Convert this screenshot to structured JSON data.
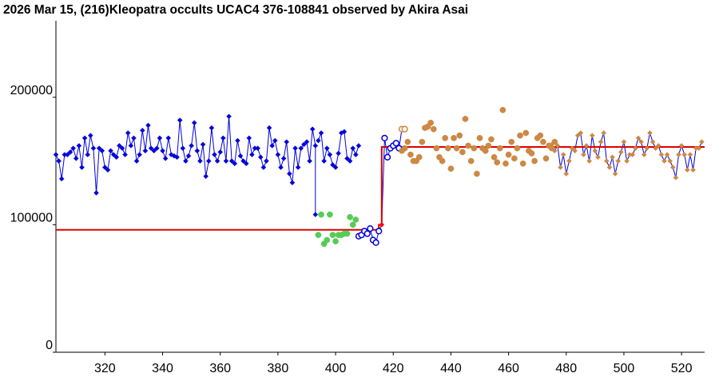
{
  "chart_data": {
    "type": "scatter",
    "title": "2026 Mar 15, (216)Kleopatra occults UCAC4 376-108841 observed by Akira Asai",
    "xlabel": "",
    "ylabel": "",
    "xlim": [
      303,
      528
    ],
    "ylim": [
      0,
      260000
    ],
    "x_ticks": [
      320,
      340,
      360,
      380,
      400,
      420,
      440,
      460,
      480,
      500,
      520
    ],
    "y_ticks": [
      0,
      100000,
      200000
    ],
    "grid": false,
    "colors": {
      "before": "#0000dd",
      "during": "#55cc55",
      "during_open": "#0000dd",
      "after": "#cc8844",
      "model": "#dd0000",
      "disappear": "#ff0000"
    },
    "series": [
      {
        "role": "before",
        "marker": "diamond-filled",
        "x": [
          303,
          304,
          305,
          306,
          307,
          308,
          309,
          310,
          311,
          312,
          313,
          314,
          315,
          316,
          317,
          318,
          319,
          320,
          321,
          322,
          323,
          324,
          325,
          326,
          327,
          328,
          329,
          330,
          331,
          332,
          333,
          334,
          335,
          336,
          337,
          338,
          339,
          340,
          341,
          342,
          343,
          344,
          345,
          346,
          347,
          348,
          349,
          350,
          351,
          352,
          353,
          354,
          355,
          356,
          357,
          358,
          359,
          360,
          361,
          362,
          363,
          364,
          365,
          366,
          367,
          368,
          369,
          370,
          371,
          372,
          373,
          374,
          375,
          376,
          377,
          378,
          379,
          380,
          381,
          382,
          383,
          384,
          385,
          386,
          387,
          388,
          389,
          390,
          391,
          392,
          393
        ],
        "y": [
          155000,
          150000,
          136000,
          155000,
          155000,
          157000,
          160000,
          152000,
          162000,
          145000,
          168000,
          155000,
          170000,
          160000,
          125000,
          160000,
          158000,
          145000,
          143000,
          158000,
          155000,
          153000,
          162000,
          160000,
          155000,
          172000,
          162000,
          168000,
          150000,
          155000,
          174000,
          158000,
          178000,
          160000,
          158000,
          160000,
          168000,
          158000,
          152000,
          168000,
          155000,
          154000,
          153000,
          182000,
          160000,
          150000,
          154000,
          162000,
          180000,
          158000,
          150000,
          163000,
          138000,
          150000,
          176000,
          155000,
          150000,
          157000,
          168000,
          150000,
          185000,
          150000,
          148000,
          166000,
          154000,
          150000,
          148000,
          168000,
          155000,
          160000,
          160000,
          153000,
          145000,
          150000,
          176000,
          162000,
          166000,
          155000,
          145000,
          152000,
          165000,
          140000,
          133000,
          160000,
          145000,
          160000,
          163000,
          165000,
          150000,
          175000,
          162000
        ]
      },
      {
        "role": "before",
        "marker": "diamond-filled",
        "x": [
          394,
          395,
          396,
          397,
          398,
          399,
          400,
          401,
          402,
          403,
          404,
          405,
          406,
          407,
          408
        ],
        "y": [
          166000,
          172000,
          150000,
          160000,
          155000,
          147000,
          145000,
          156000,
          172000,
          173000,
          152000,
          150000,
          160000,
          155000,
          162000
        ]
      },
      {
        "role": "drop",
        "marker": "diamond-filled",
        "x": [
          393
        ],
        "y": [
          108000
        ]
      },
      {
        "role": "during",
        "marker": "circle-filled",
        "x": [
          394,
          395,
          396,
          397,
          398,
          399,
          400,
          401,
          402,
          403,
          404,
          405,
          406,
          407
        ],
        "y": [
          92000,
          108000,
          85000,
          88000,
          108000,
          92000,
          87000,
          92000,
          92000,
          93000,
          93000,
          106000,
          100000,
          104000
        ]
      },
      {
        "role": "during_open",
        "marker": "circle-open",
        "x": [
          408,
          409,
          410,
          411,
          412,
          413,
          414,
          415
        ],
        "y": [
          91000,
          92000,
          95000,
          93000,
          97000,
          88000,
          86000,
          95000
        ]
      },
      {
        "role": "disappear",
        "marker": "diamond-filled",
        "x": [
          416
        ],
        "y": [
          100000
        ]
      },
      {
        "role": "reappear_open",
        "marker": "circle-open",
        "x": [
          417,
          418,
          419,
          420,
          421,
          422,
          423,
          424
        ],
        "y": [
          168000,
          153000,
          160000,
          162000,
          164000,
          160000,
          175000,
          175000
        ]
      },
      {
        "role": "after",
        "marker": "circle-filled",
        "x": [
          423,
          424,
          425,
          426,
          427,
          428,
          429,
          430,
          431,
          432,
          433,
          434,
          435,
          436,
          437,
          438,
          439,
          440,
          441,
          442,
          443,
          444,
          445,
          446,
          447,
          448,
          449,
          450,
          451,
          452,
          453,
          454,
          455,
          456,
          457,
          458,
          459,
          460,
          461,
          462,
          463,
          464,
          465,
          466,
          467,
          468,
          469,
          470,
          471,
          472,
          473,
          474,
          475,
          476
        ],
        "y": [
          158000,
          160000,
          165000,
          155000,
          150000,
          150000,
          153000,
          165000,
          176000,
          177000,
          180000,
          175000,
          160000,
          153000,
          150000,
          168000,
          160000,
          144000,
          168000,
          160000,
          170000,
          157000,
          183000,
          162000,
          150000,
          160000,
          140000,
          168000,
          160000,
          158000,
          162000,
          167000,
          153000,
          149000,
          160000,
          190000,
          148000,
          155000,
          165000,
          152000,
          160000,
          170000,
          148000,
          172000,
          158000,
          156000,
          150000,
          168000,
          170000,
          165000,
          152000,
          162000,
          160000,
          165000
        ]
      },
      {
        "role": "after",
        "marker": "diamond-filled",
        "x": [
          475,
          476,
          477,
          478,
          479,
          480,
          481,
          482,
          483,
          484,
          485,
          486,
          487,
          488,
          489,
          490,
          491,
          492,
          493,
          494,
          495,
          496,
          497,
          498,
          499,
          500,
          501,
          502,
          503,
          504,
          505,
          506,
          507,
          508,
          509,
          510,
          511,
          512,
          513,
          514,
          515,
          516,
          517,
          518,
          519,
          520,
          521,
          522,
          523,
          524,
          525,
          526,
          527
        ],
        "y": [
          163000,
          158000,
          162000,
          145000,
          155000,
          140000,
          150000,
          160000,
          158000,
          170000,
          172000,
          155000,
          162000,
          150000,
          170000,
          158000,
          153000,
          165000,
          172000,
          150000,
          145000,
          153000,
          140000,
          150000,
          157000,
          165000,
          150000,
          155000,
          155000,
          160000,
          168000,
          165000,
          155000,
          160000,
          172000,
          165000,
          160000,
          162000,
          155000,
          150000,
          155000,
          150000,
          145000,
          137000,
          155000,
          162000,
          155000,
          143000,
          155000,
          143000,
          160000,
          160000,
          165000
        ]
      }
    ],
    "model": {
      "x": [
        303,
        415,
        415,
        416,
        416,
        528
      ],
      "y": [
        96000,
        96000,
        100000,
        100000,
        161000,
        161000
      ]
    }
  }
}
